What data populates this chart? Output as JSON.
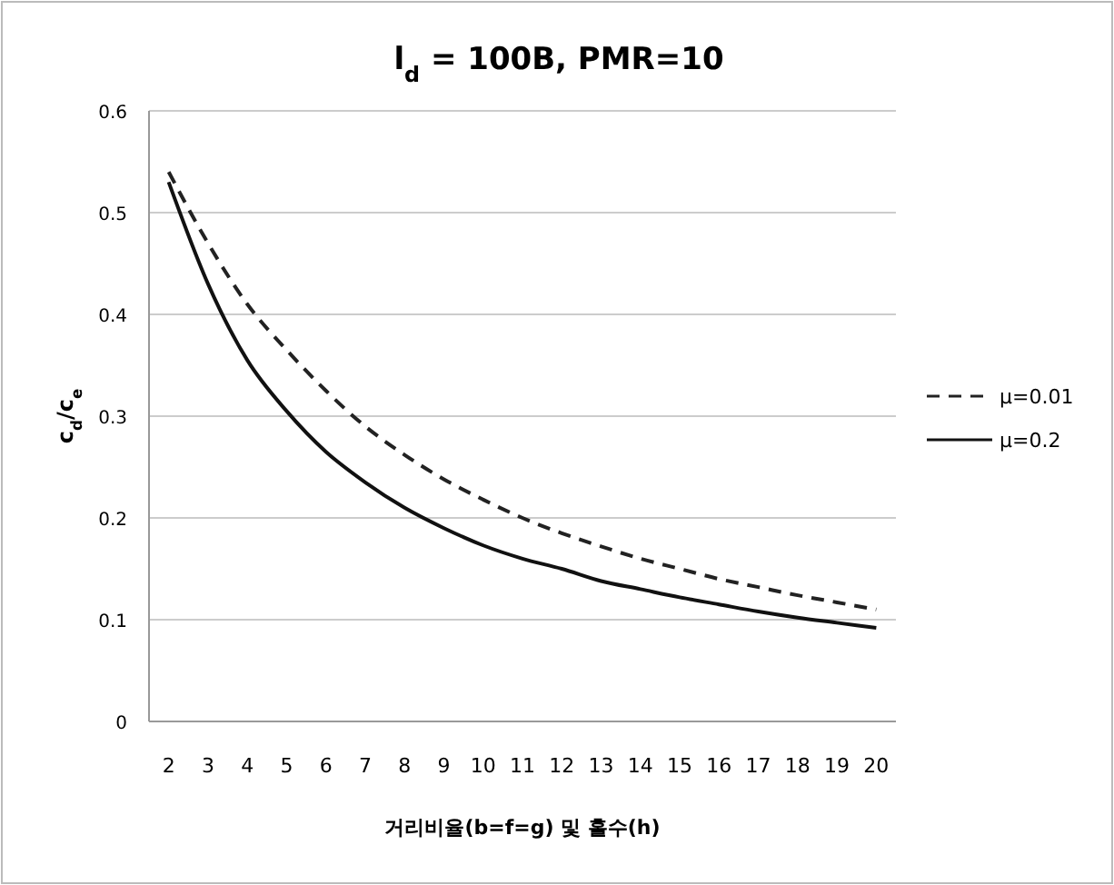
{
  "chart_data": {
    "type": "line",
    "title": "l$_{d}$ = 100B, PMR=10",
    "xlabel": "거리비율(b=f=g) 및 홀수(h)",
    "ylabel": "c$_{d}$/c$_{e}$",
    "categories": [
      "2",
      "3",
      "4",
      "5",
      "6",
      "7",
      "8",
      "9",
      "10",
      "11",
      "12",
      "13",
      "14",
      "15",
      "16",
      "17",
      "18",
      "19",
      "20"
    ],
    "series": [
      {
        "name": "μ=0.01",
        "color": "#222222",
        "line_style": "dashed",
        "values": [
          0.54,
          0.47,
          0.41,
          0.365,
          0.325,
          0.29,
          0.262,
          0.238,
          0.218,
          0.2,
          0.185,
          0.172,
          0.16,
          0.15,
          0.14,
          0.132,
          0.124,
          0.117,
          0.11
        ]
      },
      {
        "name": "μ=0.2",
        "color": "#111111",
        "line_style": "solid",
        "values": [
          0.53,
          0.43,
          0.355,
          0.305,
          0.265,
          0.235,
          0.21,
          0.19,
          0.173,
          0.16,
          0.15,
          0.138,
          0.13,
          0.122,
          0.115,
          0.108,
          0.102,
          0.097,
          0.092
        ]
      }
    ],
    "ylim": [
      0,
      0.6
    ],
    "yticks": [
      0,
      0.1,
      0.2,
      0.3,
      0.4,
      0.5,
      0.6
    ],
    "grid": "y",
    "legend": "right"
  }
}
